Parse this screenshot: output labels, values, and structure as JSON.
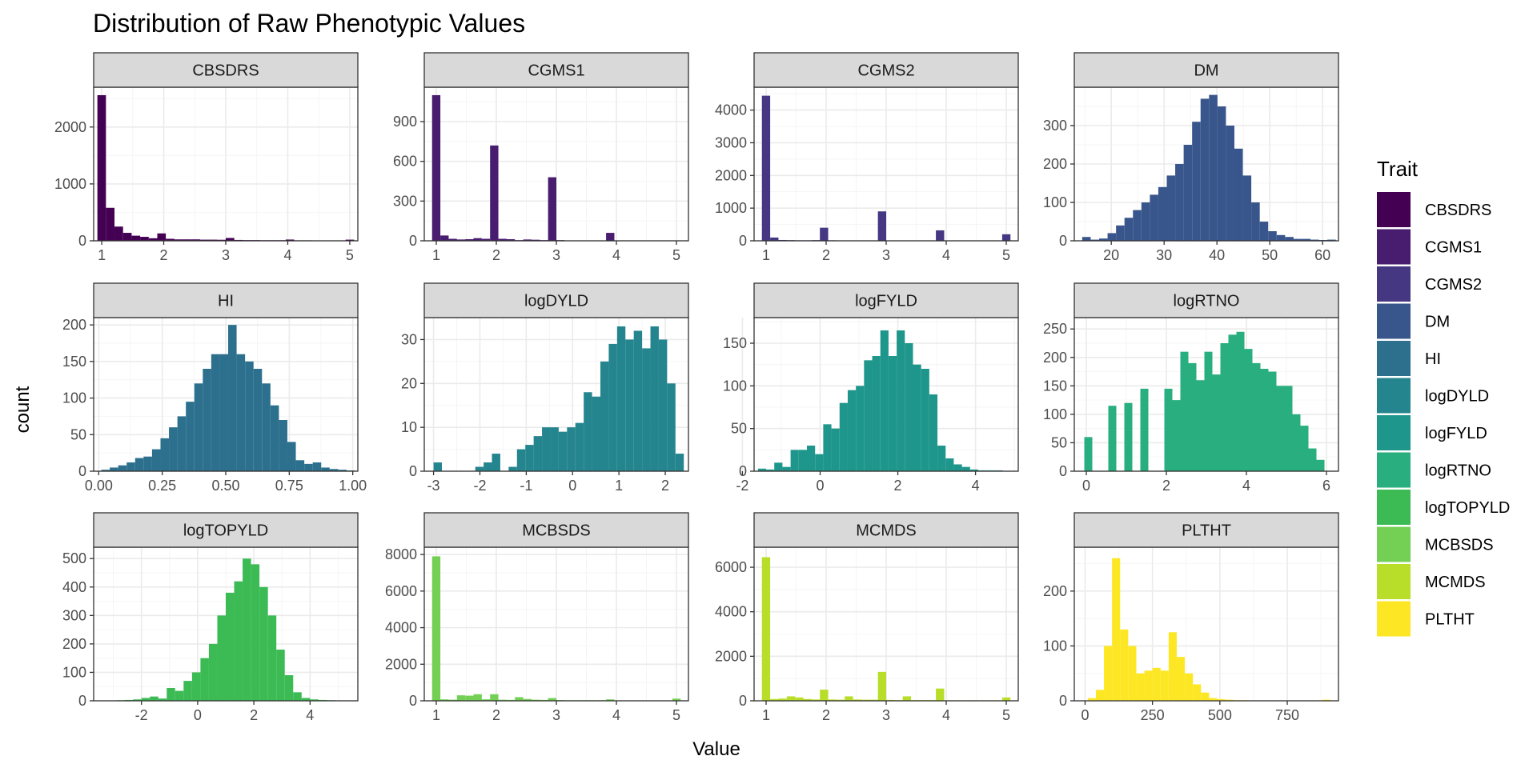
{
  "chart_data": {
    "type": "bar",
    "title": "Distribution of Raw Phenotypic Values",
    "xlabel": "Value",
    "ylabel": "count",
    "legend": {
      "title": "Trait",
      "placement": "right"
    },
    "grid": true,
    "panels": [
      {
        "name": "CBSDRS",
        "color": "#440154",
        "xlim": [
          0.87,
          5.13
        ],
        "xticks": [
          1,
          2,
          3,
          4,
          5
        ],
        "xtick_labels": [
          "1",
          "2",
          "3",
          "4",
          "5"
        ],
        "ylim": [
          0,
          2700
        ],
        "yticks": [
          0,
          1000,
          2000
        ],
        "ytick_labels": [
          "0",
          "1000",
          "2000"
        ],
        "bin_start": 0.93,
        "bin_width": 0.138,
        "values": [
          2560,
          580,
          250,
          140,
          90,
          70,
          45,
          130,
          35,
          25,
          25,
          25,
          20,
          20,
          18,
          50,
          15,
          12,
          12,
          10,
          10,
          10,
          22,
          8,
          8,
          5,
          5,
          5,
          5,
          20
        ]
      },
      {
        "name": "CGMS1",
        "color": "#481c6e",
        "xlim": [
          0.8,
          5.2
        ],
        "xticks": [
          1,
          2,
          3,
          4,
          5
        ],
        "xtick_labels": [
          "1",
          "2",
          "3",
          "4",
          "5"
        ],
        "ylim": [
          0,
          1160
        ],
        "yticks": [
          0,
          300,
          600,
          900
        ],
        "ytick_labels": [
          "0",
          "300",
          "600",
          "900"
        ],
        "bin_start": 0.93,
        "bin_width": 0.138,
        "values": [
          1100,
          40,
          15,
          10,
          12,
          20,
          15,
          720,
          15,
          12,
          5,
          10,
          8,
          5,
          480,
          5,
          3,
          3,
          3,
          3,
          3,
          60,
          3,
          3,
          3,
          3,
          3,
          3,
          3,
          3
        ]
      },
      {
        "name": "CGMS2",
        "color": "#453781",
        "xlim": [
          0.8,
          5.2
        ],
        "xticks": [
          1,
          2,
          3,
          4,
          5
        ],
        "xtick_labels": [
          "1",
          "2",
          "3",
          "4",
          "5"
        ],
        "ylim": [
          0,
          4700
        ],
        "yticks": [
          0,
          1000,
          2000,
          3000,
          4000
        ],
        "ytick_labels": [
          "0",
          "1000",
          "2000",
          "3000",
          "4000"
        ],
        "bin_start": 0.93,
        "bin_width": 0.138,
        "values": [
          4440,
          100,
          25,
          20,
          15,
          15,
          20,
          400,
          15,
          10,
          8,
          8,
          10,
          10,
          900,
          10,
          8,
          8,
          5,
          5,
          5,
          320,
          5,
          5,
          5,
          5,
          5,
          5,
          5,
          200
        ]
      },
      {
        "name": "DM",
        "color": "#39568c",
        "xlim": [
          13,
          63
        ],
        "xticks": [
          20,
          30,
          40,
          50,
          60
        ],
        "xtick_labels": [
          "20",
          "30",
          "40",
          "50",
          "60"
        ],
        "ylim": [
          0,
          400
        ],
        "yticks": [
          0,
          100,
          200,
          300
        ],
        "ytick_labels": [
          "0",
          "100",
          "200",
          "300"
        ],
        "bin_start": 14.5,
        "bin_width": 1.6,
        "values": [
          10,
          3,
          6,
          20,
          40,
          60,
          80,
          100,
          120,
          140,
          170,
          200,
          250,
          310,
          370,
          380,
          350,
          300,
          240,
          170,
          100,
          50,
          25,
          15,
          10,
          5,
          5,
          3,
          2,
          3
        ]
      },
      {
        "name": "HI",
        "color": "#2d708e",
        "xlim": [
          -0.02,
          1.02
        ],
        "xticks": [
          0,
          0.25,
          0.5,
          0.75,
          1
        ],
        "xtick_labels": [
          "0.00",
          "0.25",
          "0.50",
          "0.75",
          "1.00"
        ],
        "ylim": [
          0,
          210
        ],
        "yticks": [
          0,
          50,
          100,
          150,
          200
        ],
        "ytick_labels": [
          "0",
          "50",
          "100",
          "150",
          "200"
        ],
        "bin_start": 0.01,
        "bin_width": 0.0333,
        "values": [
          2,
          5,
          8,
          12,
          18,
          20,
          30,
          45,
          60,
          75,
          95,
          120,
          140,
          160,
          160,
          200,
          160,
          150,
          140,
          120,
          90,
          70,
          40,
          15,
          10,
          12,
          5,
          3,
          2,
          1
        ]
      },
      {
        "name": "logDYLD",
        "color": "#25858e",
        "xlim": [
          -3.2,
          2.5
        ],
        "xticks": [
          -3,
          -2,
          -1,
          0,
          1,
          2
        ],
        "xtick_labels": [
          "-3",
          "-2",
          "-1",
          "0",
          "1",
          "2"
        ],
        "ylim": [
          0,
          35
        ],
        "yticks": [
          0,
          10,
          20,
          30
        ],
        "ytick_labels": [
          "0",
          "10",
          "20",
          "30"
        ],
        "bin_start": -3.0,
        "bin_width": 0.18,
        "values": [
          2,
          0,
          0,
          0,
          0,
          1,
          2,
          4,
          0,
          1,
          5,
          6,
          8,
          10,
          10,
          9,
          10,
          11,
          18,
          17,
          25,
          29,
          33,
          30,
          32,
          28,
          33,
          30,
          20,
          4
        ]
      },
      {
        "name": "logFYLD",
        "color": "#1f968b",
        "xlim": [
          -1.7,
          5.1
        ],
        "xticks": [
          -2,
          0,
          2,
          4
        ],
        "xtick_labels": [
          "-2",
          "0",
          "2",
          "4"
        ],
        "ylim": [
          0,
          180
        ],
        "yticks": [
          0,
          50,
          100,
          150
        ],
        "ytick_labels": [
          "0",
          "50",
          "100",
          "150"
        ],
        "bin_start": -1.6,
        "bin_width": 0.21,
        "values": [
          3,
          2,
          10,
          5,
          25,
          25,
          30,
          20,
          55,
          50,
          80,
          95,
          100,
          130,
          135,
          165,
          135,
          165,
          150,
          125,
          120,
          90,
          30,
          15,
          8,
          5,
          2,
          1,
          1,
          1
        ]
      },
      {
        "name": "logRTNO",
        "color": "#29af7f",
        "xlim": [
          -0.3,
          6.3
        ],
        "xticks": [
          0,
          2,
          4,
          6
        ],
        "xtick_labels": [
          "0",
          "2",
          "4",
          "6"
        ],
        "ylim": [
          0,
          270
        ],
        "yticks": [
          0,
          50,
          100,
          150,
          200,
          250
        ],
        "ytick_labels": [
          "0",
          "50",
          "100",
          "150",
          "200",
          "250"
        ],
        "bin_start": -0.05,
        "bin_width": 0.2,
        "values": [
          60,
          0,
          0,
          115,
          0,
          120,
          0,
          145,
          0,
          0,
          145,
          125,
          210,
          190,
          160,
          210,
          170,
          225,
          240,
          245,
          215,
          190,
          180,
          175,
          150,
          150,
          100,
          80,
          40,
          20
        ]
      },
      {
        "name": "logTOPYLD",
        "color": "#3cbb55",
        "xlim": [
          -3.7,
          5.7
        ],
        "xticks": [
          -2,
          0,
          2,
          4
        ],
        "xtick_labels": [
          "-2",
          "0",
          "2",
          "4"
        ],
        "ylim": [
          0,
          540
        ],
        "yticks": [
          0,
          100,
          200,
          300,
          400,
          500
        ],
        "ytick_labels": [
          "0",
          "100",
          "200",
          "300",
          "400",
          "500"
        ],
        "bin_start": -3.5,
        "bin_width": 0.3,
        "values": [
          1,
          1,
          2,
          3,
          5,
          10,
          15,
          8,
          45,
          35,
          70,
          100,
          150,
          200,
          300,
          380,
          420,
          500,
          480,
          400,
          300,
          180,
          90,
          30,
          10,
          5,
          3,
          2,
          1,
          1
        ]
      },
      {
        "name": "MCBSDS",
        "color": "#73d055",
        "xlim": [
          0.8,
          5.2
        ],
        "xticks": [
          1,
          2,
          3,
          4,
          5
        ],
        "xtick_labels": [
          "1",
          "2",
          "3",
          "4",
          "5"
        ],
        "ylim": [
          0,
          8400
        ],
        "yticks": [
          0,
          2000,
          4000,
          6000,
          8000
        ],
        "ytick_labels": [
          "0",
          "2000",
          "4000",
          "6000",
          "8000"
        ],
        "bin_start": 0.93,
        "bin_width": 0.138,
        "values": [
          7900,
          80,
          60,
          300,
          280,
          360,
          80,
          360,
          60,
          50,
          200,
          100,
          60,
          50,
          150,
          40,
          30,
          30,
          30,
          30,
          30,
          80,
          20,
          20,
          20,
          20,
          20,
          20,
          20,
          120
        ]
      },
      {
        "name": "MCMDS",
        "color": "#b8de29",
        "xlim": [
          0.8,
          5.2
        ],
        "xticks": [
          1,
          2,
          3,
          4,
          5
        ],
        "xtick_labels": [
          "1",
          "2",
          "3",
          "4",
          "5"
        ],
        "ylim": [
          0,
          6900
        ],
        "yticks": [
          0,
          2000,
          4000,
          6000
        ],
        "ytick_labels": [
          "0",
          "2000",
          "4000",
          "6000"
        ],
        "bin_start": 0.93,
        "bin_width": 0.138,
        "values": [
          6450,
          80,
          100,
          200,
          150,
          80,
          60,
          500,
          60,
          50,
          200,
          60,
          50,
          50,
          1300,
          40,
          30,
          200,
          30,
          30,
          30,
          550,
          20,
          20,
          20,
          20,
          20,
          20,
          20,
          150
        ]
      },
      {
        "name": "PLTHT",
        "color": "#fde725",
        "xlim": [
          -40,
          940
        ],
        "xticks": [
          0,
          250,
          500,
          750
        ],
        "xtick_labels": [
          "0",
          "250",
          "500",
          "750"
        ],
        "ylim": [
          0,
          280
        ],
        "yticks": [
          0,
          100,
          200
        ],
        "ytick_labels": [
          "0",
          "100",
          "200"
        ],
        "bin_start": 10,
        "bin_width": 30,
        "values": [
          5,
          20,
          100,
          260,
          130,
          100,
          50,
          55,
          60,
          55,
          125,
          80,
          50,
          30,
          15,
          5,
          3,
          2,
          1,
          1,
          0,
          0,
          0,
          0,
          0,
          0,
          0,
          0,
          0,
          2
        ]
      }
    ]
  }
}
